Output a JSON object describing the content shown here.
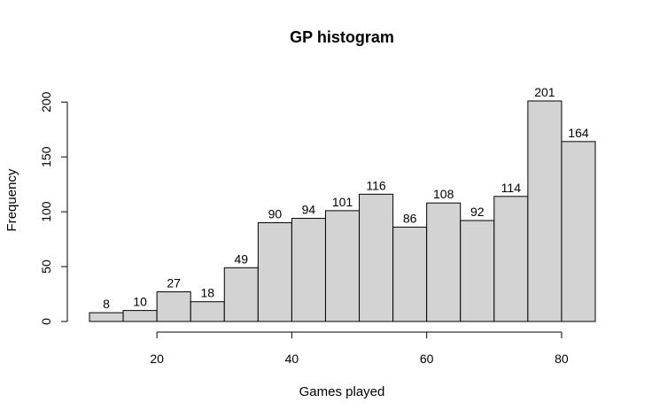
{
  "chart_data": {
    "type": "bar",
    "title": "GP histogram",
    "xlabel": "Games played",
    "ylabel": "Frequency",
    "bin_edges": [
      10,
      15,
      20,
      25,
      30,
      35,
      40,
      45,
      50,
      55,
      60,
      65,
      70,
      75,
      80,
      85
    ],
    "values": [
      8,
      10,
      27,
      18,
      49,
      90,
      94,
      101,
      116,
      86,
      108,
      92,
      114,
      201,
      164
    ],
    "xlim": [
      10,
      85
    ],
    "ylim": [
      0,
      201
    ],
    "x_ticks": [
      20,
      40,
      60,
      80
    ],
    "y_ticks": [
      0,
      50,
      100,
      150,
      200
    ],
    "bar_color": "#d3d3d3",
    "grid": false,
    "data_labels": true
  }
}
